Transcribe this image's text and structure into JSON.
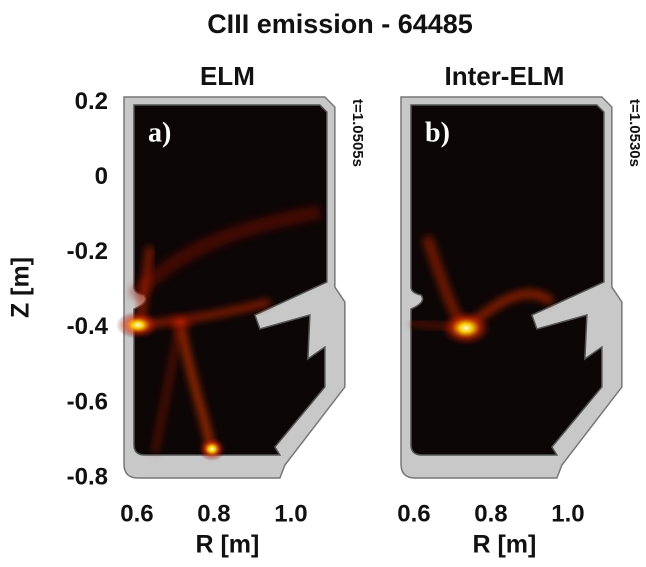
{
  "figure_title": "CIII emission - 64485",
  "chart_data": [
    {
      "type": "image",
      "title": "ELM",
      "panel_label": "a)",
      "time_label": "t=1.0505s",
      "xlabel": "R [m]",
      "ylabel": "Z [m]",
      "xlim": [
        0.556,
        1.14
      ],
      "ylim": [
        -0.8,
        0.215
      ],
      "xticks": [
        0.6,
        0.8,
        {
          "value": 1,
          "label": "1.0"
        }
      ],
      "yticks": [
        0.2,
        0,
        -0.2,
        -0.4,
        -0.6,
        -0.8
      ]
    },
    {
      "type": "image",
      "title": "Inter-ELM",
      "panel_label": "b)",
      "time_label": "t=1.0530s",
      "xlabel": "R [m]",
      "xlim": [
        0.556,
        1.14
      ],
      "ylim": [
        -0.8,
        0.215
      ],
      "xticks": [
        0.6,
        0.8,
        {
          "value": 1,
          "label": "1.0"
        }
      ]
    }
  ]
}
